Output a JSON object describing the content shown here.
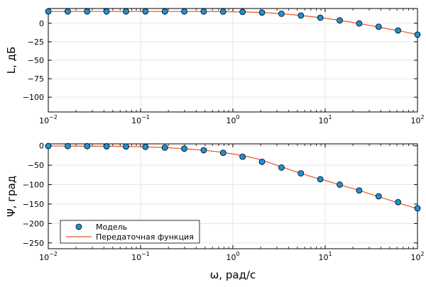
{
  "chart_data": [
    {
      "type": "line",
      "xlabel": "",
      "ylabel": "L, дБ",
      "xscale": "log",
      "xlim": [
        0.01,
        100
      ],
      "ylim": [
        -120,
        20
      ],
      "yticks": [
        0,
        -25,
        -50,
        -75,
        -100
      ],
      "xticks": [
        {
          "value": 0.01,
          "base": "10",
          "exp": "−2"
        },
        {
          "value": 0.1,
          "base": "10",
          "exp": "−1"
        },
        {
          "value": 1,
          "base": "10",
          "exp": "0"
        },
        {
          "value": 10,
          "base": "10",
          "exp": "1"
        },
        {
          "value": 100,
          "base": "10",
          "exp": "2"
        }
      ],
      "grid": true,
      "series": [
        {
          "name": "Модель",
          "kind": "scatter",
          "color": "#1f8fd6",
          "x": [
            0.01,
            0.01624,
            0.02637,
            0.04281,
            0.06952,
            0.1129,
            0.1833,
            0.2976,
            0.4833,
            0.7848,
            1.274,
            2.069,
            3.36,
            5.456,
            8.859,
            14.38,
            23.36,
            37.93,
            61.58,
            100
          ],
          "y": [
            16.0,
            16.0,
            16.0,
            16.0,
            16.0,
            16.0,
            16.0,
            16.0,
            15.9,
            15.8,
            15.4,
            14.5,
            12.9,
            10.5,
            7.5,
            3.9,
            -0.2,
            -4.7,
            -9.7,
            -15.4
          ]
        },
        {
          "name": "Передаточная функция",
          "kind": "line",
          "color": "#e8542c",
          "x": [
            0.01,
            0.02,
            0.05,
            0.1,
            0.2,
            0.5,
            1,
            1.5,
            2,
            3,
            5,
            7,
            10,
            15,
            20,
            30,
            50,
            70,
            100
          ],
          "y": [
            16.0,
            16.0,
            16.0,
            16.0,
            16.0,
            15.9,
            15.6,
            15.2,
            14.6,
            13.4,
            11.0,
            9.1,
            6.8,
            3.6,
            1.1,
            -2.7,
            -7.9,
            -11.2,
            -15.4
          ]
        }
      ]
    },
    {
      "type": "line",
      "xlabel": "ω, рад/с",
      "ylabel": "Ψ, град",
      "xscale": "log",
      "xlim": [
        0.01,
        100
      ],
      "ylim": [
        -265,
        5
      ],
      "yticks": [
        0,
        -50,
        -100,
        -150,
        -200,
        -250
      ],
      "xticks": [
        {
          "value": 0.01,
          "base": "10",
          "exp": "−2"
        },
        {
          "value": 0.1,
          "base": "10",
          "exp": "−1"
        },
        {
          "value": 1,
          "base": "10",
          "exp": "0"
        },
        {
          "value": 10,
          "base": "10",
          "exp": "1"
        },
        {
          "value": 100,
          "base": "10",
          "exp": "2"
        }
      ],
      "grid": true,
      "legend": "bottom-left",
      "series": [
        {
          "name": "Модель",
          "kind": "scatter",
          "color": "#1f8fd6",
          "x": [
            0.01,
            0.01624,
            0.02637,
            0.04281,
            0.06952,
            0.1129,
            0.1833,
            0.2976,
            0.4833,
            0.7848,
            1.274,
            2.069,
            3.36,
            5.456,
            8.859,
            14.38,
            23.36,
            37.93,
            61.58,
            100
          ],
          "y": [
            -0.6,
            -0.8,
            -1.0,
            -1.3,
            -1.8,
            -2.8,
            -4.6,
            -7.4,
            -11.4,
            -18,
            -28,
            -41,
            -56,
            -71,
            -86,
            -100,
            -115,
            -130,
            -145,
            -161
          ]
        },
        {
          "name": "Передаточная функция",
          "kind": "line",
          "color": "#e8542c",
          "x": [
            0.01,
            0.02,
            0.05,
            0.1,
            0.2,
            0.3,
            0.5,
            0.7,
            1,
            1.5,
            2,
            3,
            5,
            7,
            10,
            15,
            20,
            30,
            50,
            70,
            100
          ],
          "y": [
            -0.6,
            -0.9,
            -1.4,
            -2.4,
            -5.0,
            -7.5,
            -11.8,
            -15.6,
            -21,
            -28.5,
            -36,
            -50,
            -68,
            -79,
            -89,
            -102,
            -110,
            -123,
            -140,
            -151,
            -162
          ]
        }
      ]
    }
  ]
}
